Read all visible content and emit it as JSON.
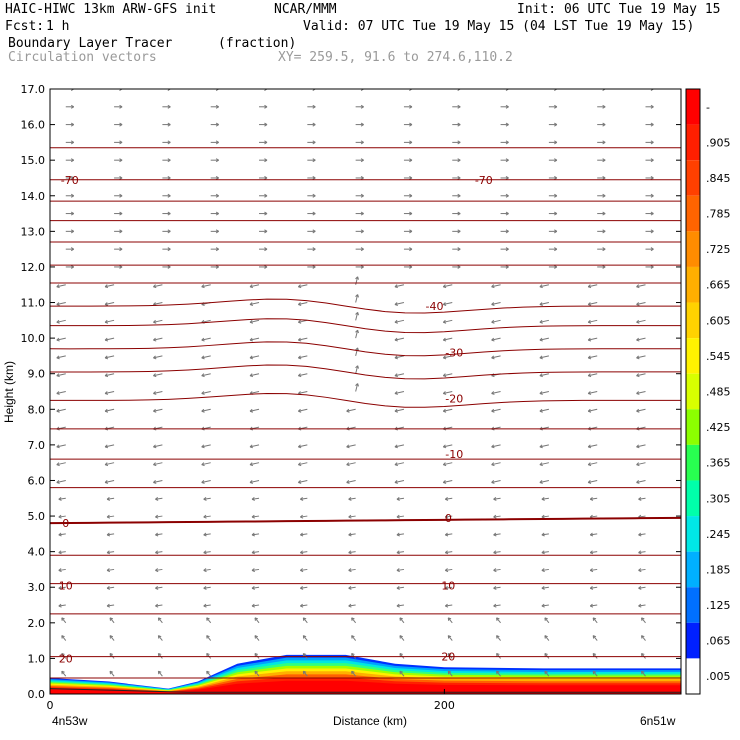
{
  "header": {
    "model": "HAIC-HIWC 13km ARW-GFS init",
    "org": "NCAR/MMM",
    "init": "Init: 06 UTC Tue 19 May 15",
    "fcst_label": "Fcst:",
    "fcst_value": "1 h",
    "valid": "Valid: 07 UTC Tue 19 May 15 (04 LST Tue 19 May 15)",
    "field1": "Boundary Layer Tracer",
    "field1_units": "(fraction)",
    "field2": "Circulation vectors",
    "xy": "XY= 259.5, 91.6 to 274.6,110.2"
  },
  "chart_data": {
    "type": "area",
    "xlabel": "Distance (km)",
    "ylabel": "Height (km)",
    "xlim": [
      0,
      320
    ],
    "ylim": [
      0,
      17
    ],
    "x_ticks": [
      "0",
      "200"
    ],
    "x_tick_values": [
      0,
      200
    ],
    "x_end_labels": [
      "4n53w",
      "6n51w"
    ],
    "y_ticks": [
      "0.0",
      "1.0",
      "2.0",
      "3.0",
      "4.0",
      "5.0",
      "6.0",
      "7.0",
      "8.0",
      "9.0",
      "10.0",
      "11.0",
      "12.0",
      "13.0",
      "14.0",
      "15.0",
      "16.0",
      "17.0"
    ],
    "colorbar": {
      "labels": [
        "-",
        ".905",
        ".845",
        ".785",
        ".725",
        ".665",
        ".605",
        ".545",
        ".485",
        ".425",
        ".365",
        ".305",
        ".245",
        ".185",
        ".125",
        ".065",
        ".005"
      ],
      "colors": [
        "#ff0000",
        "#ff1f00",
        "#ff4000",
        "#ff6400",
        "#ff8c00",
        "#ffaf00",
        "#ffd200",
        "#fff200",
        "#d8ff00",
        "#8cff00",
        "#28ff50",
        "#00ffaa",
        "#00e8e6",
        "#00b0ff",
        "#0070ff",
        "#0020ff",
        "#ffffff"
      ]
    },
    "temperature_contour_labels": [
      {
        "label": "-70",
        "x": 10,
        "y": 14.45
      },
      {
        "label": "-70",
        "x": 220,
        "y": 14.45
      },
      {
        "label": "-40",
        "x": 195,
        "y": 10.9
      },
      {
        "label": "-30",
        "x": 205,
        "y": 9.6
      },
      {
        "label": "-20",
        "x": 205,
        "y": 8.3
      },
      {
        "label": "-10",
        "x": 205,
        "y": 6.75
      },
      {
        "label": "0",
        "x": 8,
        "y": 4.8
      },
      {
        "label": "0",
        "x": 202,
        "y": 4.95
      },
      {
        "label": "10",
        "x": 8,
        "y": 3.05
      },
      {
        "label": "10",
        "x": 202,
        "y": 3.05
      },
      {
        "label": "20",
        "x": 8,
        "y": 1.0
      },
      {
        "label": "20",
        "x": 202,
        "y": 1.05
      }
    ],
    "isotherm_heights": [
      0.45,
      1.05,
      2.25,
      3.1,
      3.9,
      4.8,
      5.8,
      6.6,
      7.45,
      8.25,
      9.05,
      9.7,
      10.35,
      10.9,
      11.55,
      12.05,
      12.7,
      13.3,
      13.85,
      14.45,
      15.35
    ],
    "tracer_profile": [
      {
        "x": 0,
        "top": 0.45
      },
      {
        "x": 30,
        "top": 0.35
      },
      {
        "x": 60,
        "top": 0.15
      },
      {
        "x": 75,
        "top": 0.35
      },
      {
        "x": 95,
        "top": 0.85
      },
      {
        "x": 120,
        "top": 1.1
      },
      {
        "x": 150,
        "top": 1.1
      },
      {
        "x": 175,
        "top": 0.85
      },
      {
        "x": 200,
        "top": 0.75
      },
      {
        "x": 250,
        "top": 0.72
      },
      {
        "x": 320,
        "top": 0.72
      }
    ]
  }
}
